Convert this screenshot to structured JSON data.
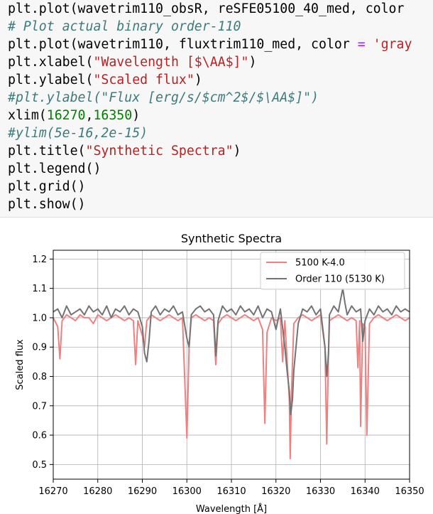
{
  "code_cell": {
    "lines": [
      {
        "parts": [
          {
            "t": "plt.plot(wavetrim110_obsR, reSFE05100_40_med, color ",
            "c": "#000000",
            "i": false
          }
        ]
      },
      {
        "parts": [
          {
            "t": "# Plot actual binary order-110",
            "c": "#3d7b7b",
            "i": true
          }
        ]
      },
      {
        "parts": [
          {
            "t": "plt.plot(wavetrim110, fluxtrim110_med, color ",
            "c": "#000000",
            "i": false
          },
          {
            "t": "=",
            "c": "#aa22ff",
            "i": false
          },
          {
            "t": " 'gray",
            "c": "#ba2121",
            "i": false
          }
        ]
      },
      {
        "parts": [
          {
            "t": "plt.xlabel(",
            "c": "#000000",
            "i": false
          },
          {
            "t": "\"Wavelength [$\\AA$]\"",
            "c": "#ba2121",
            "i": false
          },
          {
            "t": ")",
            "c": "#000000",
            "i": false
          }
        ]
      },
      {
        "parts": [
          {
            "t": "plt.ylabel(",
            "c": "#000000",
            "i": false
          },
          {
            "t": "\"Scaled flux\"",
            "c": "#ba2121",
            "i": false
          },
          {
            "t": ")",
            "c": "#000000",
            "i": false
          }
        ]
      },
      {
        "parts": [
          {
            "t": "#plt.ylabel(\"Flux [erg/s/$cm^2$/$\\AA$]\")",
            "c": "#3d7b7b",
            "i": true
          }
        ]
      },
      {
        "parts": [
          {
            "t": "xlim(",
            "c": "#000000",
            "i": false
          },
          {
            "t": "16270",
            "c": "#008000",
            "i": false
          },
          {
            "t": ",",
            "c": "#000000",
            "i": false
          },
          {
            "t": "16350",
            "c": "#008000",
            "i": false
          },
          {
            "t": ")",
            "c": "#000000",
            "i": false
          }
        ]
      },
      {
        "parts": [
          {
            "t": "#ylim(5e-16,2e-15)",
            "c": "#3d7b7b",
            "i": true
          }
        ]
      },
      {
        "parts": [
          {
            "t": "plt.title(",
            "c": "#000000",
            "i": false
          },
          {
            "t": "\"Synthetic Spectra\"",
            "c": "#ba2121",
            "i": false
          },
          {
            "t": ")",
            "c": "#000000",
            "i": false
          }
        ]
      },
      {
        "parts": [
          {
            "t": "plt.legend()",
            "c": "#000000",
            "i": false
          }
        ]
      },
      {
        "parts": [
          {
            "t": "plt.grid()",
            "c": "#000000",
            "i": false
          }
        ]
      },
      {
        "parts": [
          {
            "t": "plt.show()",
            "c": "#000000",
            "i": false
          }
        ]
      }
    ]
  },
  "chart_data": {
    "type": "line",
    "title": "Synthetic Spectra",
    "xlabel": "Wavelength [Å]",
    "ylabel": "Scaled flux",
    "xlim": [
      16270,
      16350
    ],
    "ylim": [
      0.45,
      1.23
    ],
    "xticks": [
      16270,
      16280,
      16290,
      16300,
      16310,
      16320,
      16330,
      16340,
      16350
    ],
    "yticks": [
      0.5,
      0.6,
      0.7,
      0.8,
      0.9,
      1.0,
      1.1,
      1.2
    ],
    "grid": true,
    "legend_position": "top-right",
    "series": [
      {
        "name": "5100 K-4.0",
        "color": "#f08080",
        "x": [
          16270,
          16271,
          16271.5,
          16272,
          16273,
          16274,
          16275,
          16276,
          16277,
          16278,
          16279,
          16280,
          16281,
          16282,
          16283,
          16284,
          16285,
          16286,
          16287,
          16288,
          16288.5,
          16289,
          16290,
          16290.5,
          16291,
          16292,
          16293,
          16294,
          16295,
          16296,
          16297,
          16298,
          16299,
          16299.5,
          16300,
          16300.5,
          16301,
          16302,
          16303,
          16304,
          16305,
          16306,
          16306.5,
          16307,
          16308,
          16309,
          16310,
          16311,
          16312,
          16313,
          16314,
          16315,
          16316,
          16317,
          16317.5,
          16318,
          16319,
          16320,
          16321,
          16321.5,
          16322,
          16323,
          16323.2,
          16323.5,
          16324,
          16325,
          16326,
          16327,
          16328,
          16329,
          16330,
          16331,
          16331.4,
          16331.8,
          16332,
          16333,
          16334,
          16335,
          16336,
          16337,
          16338,
          16338.4,
          16338.8,
          16339,
          16339.5,
          16340,
          16340.4,
          16341,
          16342,
          16343,
          16344,
          16345,
          16346,
          16347,
          16348,
          16349,
          16350
        ],
        "y": [
          1.0,
          0.97,
          0.86,
          0.99,
          1.01,
          1.0,
          0.99,
          1.01,
          1.0,
          1.0,
          0.98,
          1.01,
          1.0,
          0.99,
          1.0,
          1.01,
          1.0,
          0.99,
          1.0,
          0.99,
          0.84,
          0.99,
          0.94,
          0.9,
          0.99,
          1.01,
          1.0,
          0.99,
          1.0,
          1.01,
          1.0,
          0.99,
          1.0,
          0.8,
          0.59,
          0.9,
          1.0,
          1.01,
          1.0,
          0.99,
          1.0,
          0.99,
          0.84,
          0.98,
          1.0,
          1.01,
          1.0,
          0.99,
          1.0,
          1.01,
          1.0,
          0.99,
          1.0,
          0.96,
          0.64,
          0.95,
          1.0,
          0.99,
          1.0,
          0.85,
          0.99,
          0.72,
          0.52,
          0.75,
          0.98,
          1.0,
          1.01,
          1.0,
          0.99,
          1.0,
          1.01,
          0.9,
          0.57,
          0.88,
          0.99,
          1.0,
          1.01,
          1.0,
          0.99,
          1.0,
          0.99,
          0.83,
          0.99,
          0.63,
          0.98,
          0.97,
          0.6,
          0.98,
          1.0,
          1.01,
          1.0,
          0.99,
          1.0,
          1.01,
          1.0,
          0.99,
          1.0
        ]
      },
      {
        "name": "Order 110 (5130 K)",
        "color": "#737373",
        "x": [
          16270,
          16271,
          16272,
          16273,
          16274,
          16275,
          16276,
          16277,
          16278,
          16279,
          16280,
          16281,
          16282,
          16283,
          16284,
          16285,
          16286,
          16287,
          16288,
          16289,
          16290,
          16290.5,
          16291,
          16291.5,
          16292,
          16293,
          16294,
          16295,
          16296,
          16297,
          16298,
          16299,
          16300,
          16300.5,
          16301,
          16302,
          16303,
          16304,
          16305,
          16306,
          16306.5,
          16307,
          16308,
          16309,
          16310,
          16311,
          16312,
          16313,
          16314,
          16315,
          16316,
          16317,
          16318,
          16319,
          16320,
          16321,
          16322,
          16322.5,
          16323,
          16323.3,
          16323.7,
          16324,
          16325,
          16326,
          16327,
          16328,
          16329,
          16330,
          16331,
          16331.4,
          16331.8,
          16332,
          16333,
          16334,
          16334.5,
          16335,
          16335.5,
          16336,
          16337,
          16338,
          16339,
          16339.5,
          16340,
          16341,
          16342,
          16343,
          16344,
          16345,
          16346,
          16347,
          16348,
          16349,
          16350
        ],
        "y": [
          1.02,
          1.03,
          1.0,
          1.04,
          1.01,
          1.02,
          1.03,
          1.01,
          1.04,
          1.02,
          1.03,
          1.01,
          1.04,
          1.0,
          1.03,
          1.02,
          1.04,
          1.01,
          1.03,
          1.02,
          0.97,
          0.88,
          0.85,
          0.92,
          1.02,
          1.04,
          1.01,
          1.03,
          1.02,
          1.04,
          1.01,
          1.02,
          0.93,
          0.9,
          1.01,
          1.03,
          1.04,
          1.02,
          1.03,
          1.01,
          0.87,
          0.99,
          1.04,
          1.02,
          1.03,
          1.01,
          1.04,
          1.02,
          1.03,
          1.01,
          1.04,
          1.0,
          1.03,
          1.02,
          0.96,
          1.03,
          0.9,
          0.82,
          0.75,
          0.67,
          0.72,
          0.82,
          0.98,
          1.03,
          1.02,
          1.04,
          1.01,
          1.03,
          0.9,
          0.8,
          0.88,
          1.01,
          1.04,
          1.02,
          1.06,
          1.1,
          1.05,
          1.01,
          1.04,
          1.02,
          1.03,
          0.92,
          0.99,
          1.03,
          1.01,
          1.04,
          1.02,
          1.03,
          1.01,
          1.04,
          1.02,
          1.03,
          1.02
        ]
      }
    ]
  }
}
